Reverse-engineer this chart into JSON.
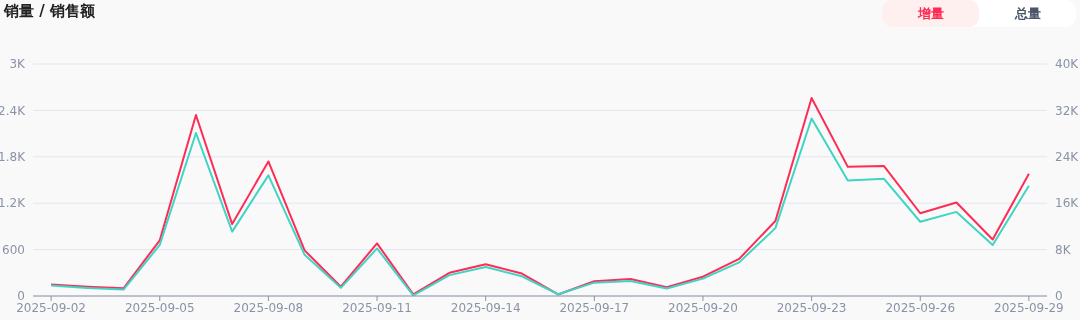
{
  "chart_data": {
    "type": "line",
    "title": "销量 / 销售额",
    "annotations": [
      "增量",
      "总量"
    ],
    "categories": [
      "2025-09-02",
      null,
      null,
      "2025-09-05",
      null,
      null,
      "2025-09-08",
      null,
      null,
      "2025-09-11",
      null,
      null,
      "2025-09-14",
      null,
      null,
      "2025-09-17",
      null,
      null,
      "2025-09-20",
      null,
      null,
      "2025-09-23",
      null,
      null,
      "2025-09-26",
      null,
      null,
      "2025-09-29"
    ],
    "series": [
      {
        "color": "#fe2c55",
        "values": [
          150,
          120,
          100,
          720,
          2340,
          930,
          1740,
          590,
          120,
          680,
          20,
          300,
          410,
          290,
          20,
          190,
          220,
          115,
          250,
          480,
          970,
          2560,
          1670,
          1680,
          1070,
          1210,
          730,
          1580
        ]
      },
      {
        "color": "#3fd4c4",
        "axis": "y2",
        "values": [
          1800,
          1400,
          1100,
          8800,
          28100,
          11100,
          20800,
          7100,
          1400,
          8200,
          100,
          3600,
          5000,
          3400,
          300,
          2300,
          2600,
          1300,
          3000,
          5800,
          11700,
          30600,
          19900,
          20200,
          12800,
          14500,
          8800,
          19000
        ]
      }
    ],
    "ylim": [
      0,
      3000
    ],
    "yticks": [
      0,
      600,
      {
        "value": 1200,
        "label": "1.2K"
      },
      {
        "value": 1800,
        "label": "1.8K"
      },
      {
        "value": 2400,
        "label": "2.4K"
      },
      {
        "value": 3000,
        "label": "3K"
      }
    ],
    "y2lim": [
      0,
      40000
    ],
    "y2ticks": [
      0,
      {
        "value": 8000,
        "label": "8K"
      },
      {
        "value": 16000,
        "label": "16K"
      },
      {
        "value": 24000,
        "label": "24K"
      },
      {
        "value": 32000,
        "label": "32K"
      },
      {
        "value": 40000,
        "label": "40K"
      }
    ],
    "grid": "y",
    "marker": "none",
    "line_style": "solid"
  }
}
